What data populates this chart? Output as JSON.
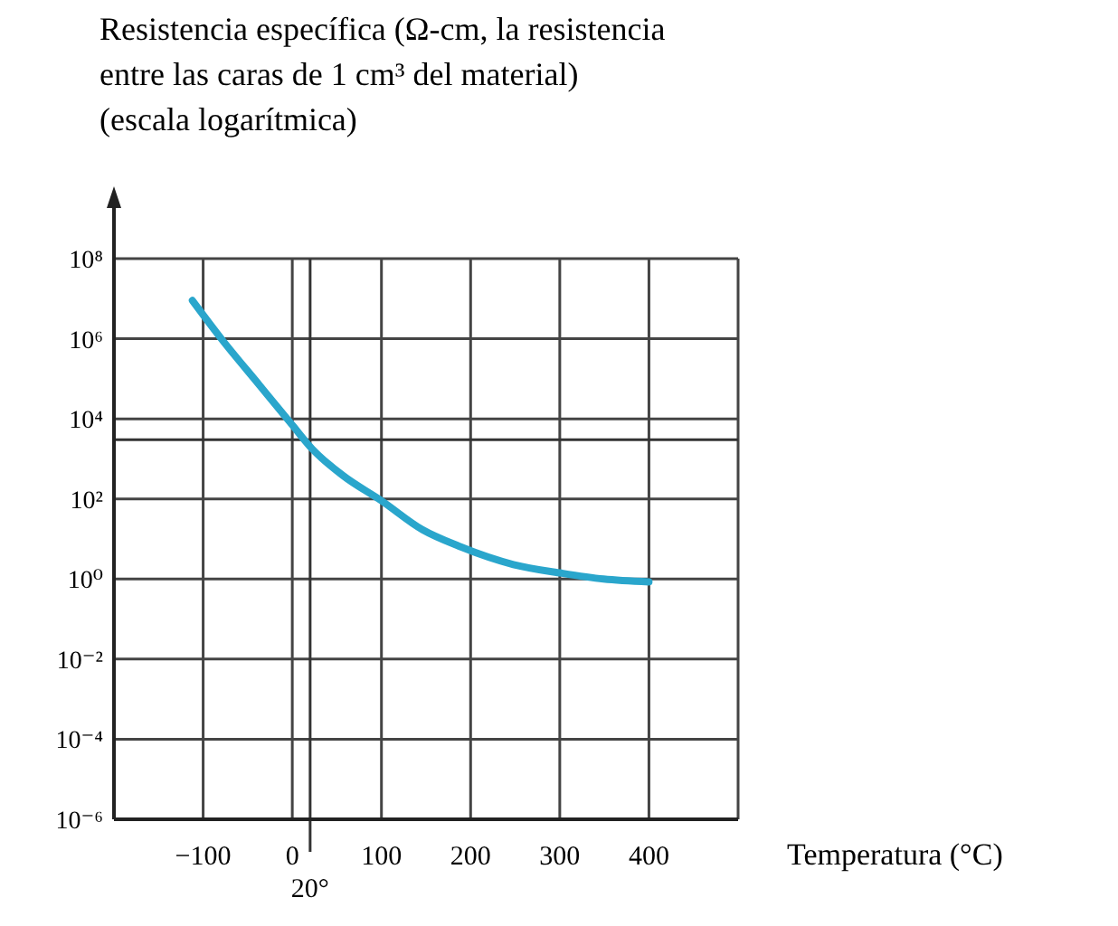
{
  "chart_data": {
    "type": "line",
    "ylabel": "Resistencia específica (Ω-cm, la resistencia\nentre las caras de 1 cm³ del material)\n(escala logarítmica)",
    "xlabel": "Temperatura (°C)",
    "x": [
      -112,
      -78,
      -37,
      0,
      22,
      57,
      100,
      146,
      187,
      248,
      302,
      349,
      400
    ],
    "series": [
      {
        "color": "#2aa6cc",
        "values": [
          9000000,
          900000,
          70000,
          7000,
          1800,
          380,
          90,
          17,
          6.6,
          2.3,
          1.4,
          1,
          0.85
        ]
      }
    ],
    "log": true,
    "grid": true,
    "marker": "none",
    "line_style": "solid",
    "xlim": [
      -200,
      500
    ],
    "xticks": [
      {
        "value": -100,
        "label": "−100"
      },
      0,
      100,
      200,
      300,
      400
    ],
    "ylim": [
      1e-06,
      100000000
    ],
    "yticks": [
      {
        "value": 1e-06,
        "label": "10⁻⁶"
      },
      {
        "value": 0.0001,
        "label": "10⁻⁴"
      },
      {
        "value": 0.01,
        "label": "10⁻²"
      },
      {
        "value": 1,
        "label": "10⁰"
      },
      {
        "value": 100,
        "label": "10²"
      },
      {
        "value": 10000,
        "label": "10⁴"
      },
      {
        "value": 1000000,
        "label": "10⁶"
      },
      {
        "value": 100000000,
        "label": "10⁸"
      }
    ],
    "ref_lines": [
      {
        "axis": "x",
        "value": 20,
        "label": "20°",
        "color": "#333333"
      },
      {
        "axis": "y",
        "value": 3000,
        "color": "#333333"
      }
    ]
  }
}
